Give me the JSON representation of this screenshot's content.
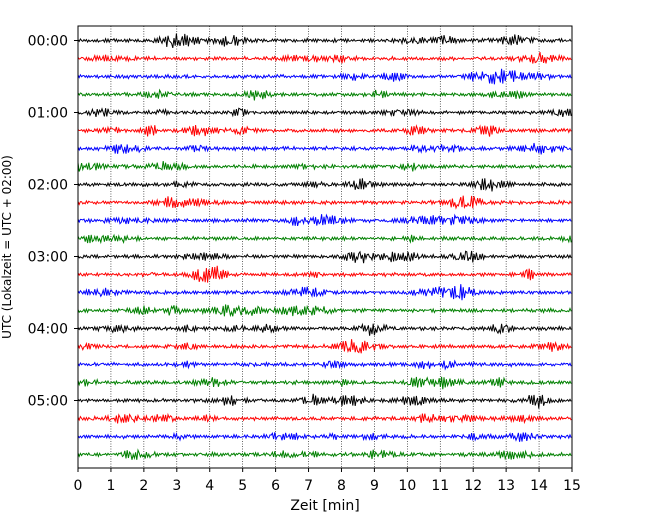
{
  "chart_data": {
    "type": "line",
    "xlabel": "Zeit  [min]",
    "ylabel": "UTC (Lokalzeit = UTC + 02:00)",
    "xlim": [
      0,
      15
    ],
    "x_ticks": [
      "0",
      "1",
      "2",
      "3",
      "4",
      "5",
      "6",
      "7",
      "8",
      "9",
      "10",
      "11",
      "12",
      "13",
      "14",
      "15"
    ],
    "y_ticks": [
      "00:00",
      "01:00",
      "02:00",
      "03:00",
      "04:00",
      "05:00"
    ],
    "trace_interval_min": 15,
    "trace_count": 24,
    "trace_colors": [
      "#000000",
      "#ff0000",
      "#0000ff",
      "#008000"
    ],
    "grid": "vertical dotted at each minute",
    "series_description": "Seismic helicorder traces, one per 15-minute block from 00:00 to 05:45 UTC"
  }
}
